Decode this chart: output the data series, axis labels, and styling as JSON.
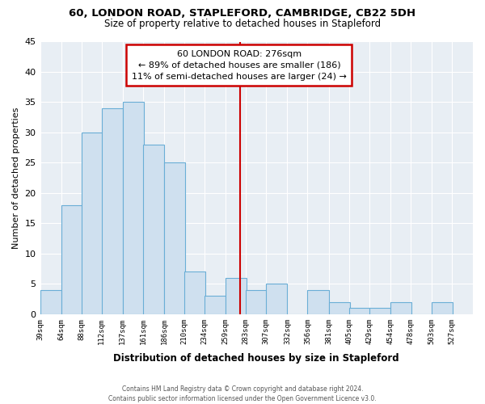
{
  "title": "60, LONDON ROAD, STAPLEFORD, CAMBRIDGE, CB22 5DH",
  "subtitle": "Size of property relative to detached houses in Stapleford",
  "xlabel": "Distribution of detached houses by size in Stapleford",
  "ylabel": "Number of detached properties",
  "bar_color": "#cfe0ef",
  "bar_edge_color": "#6aaed6",
  "background_color": "#ffffff",
  "plot_bg_color": "#e8eef4",
  "grid_color": "#ffffff",
  "bins": [
    39,
    64,
    88,
    112,
    137,
    161,
    186,
    210,
    234,
    259,
    283,
    307,
    332,
    356,
    381,
    405,
    429,
    454,
    478,
    503,
    527
  ],
  "counts": [
    4,
    18,
    30,
    34,
    35,
    28,
    25,
    7,
    3,
    6,
    4,
    5,
    0,
    4,
    2,
    1,
    1,
    2,
    0,
    2
  ],
  "tick_labels": [
    "39sqm",
    "64sqm",
    "88sqm",
    "112sqm",
    "137sqm",
    "161sqm",
    "186sqm",
    "210sqm",
    "234sqm",
    "259sqm",
    "283sqm",
    "307sqm",
    "332sqm",
    "356sqm",
    "381sqm",
    "405sqm",
    "429sqm",
    "454sqm",
    "478sqm",
    "503sqm",
    "527sqm"
  ],
  "property_size": 276,
  "vline_color": "#cc0000",
  "annotation_title": "60 LONDON ROAD: 276sqm",
  "annotation_line1": "← 89% of detached houses are smaller (186)",
  "annotation_line2": "11% of semi-detached houses are larger (24) →",
  "annotation_box_color": "#ffffff",
  "annotation_box_edge": "#cc0000",
  "ylim": [
    0,
    45
  ],
  "yticks": [
    0,
    5,
    10,
    15,
    20,
    25,
    30,
    35,
    40,
    45
  ],
  "footer_line1": "Contains HM Land Registry data © Crown copyright and database right 2024.",
  "footer_line2": "Contains public sector information licensed under the Open Government Licence v3.0."
}
